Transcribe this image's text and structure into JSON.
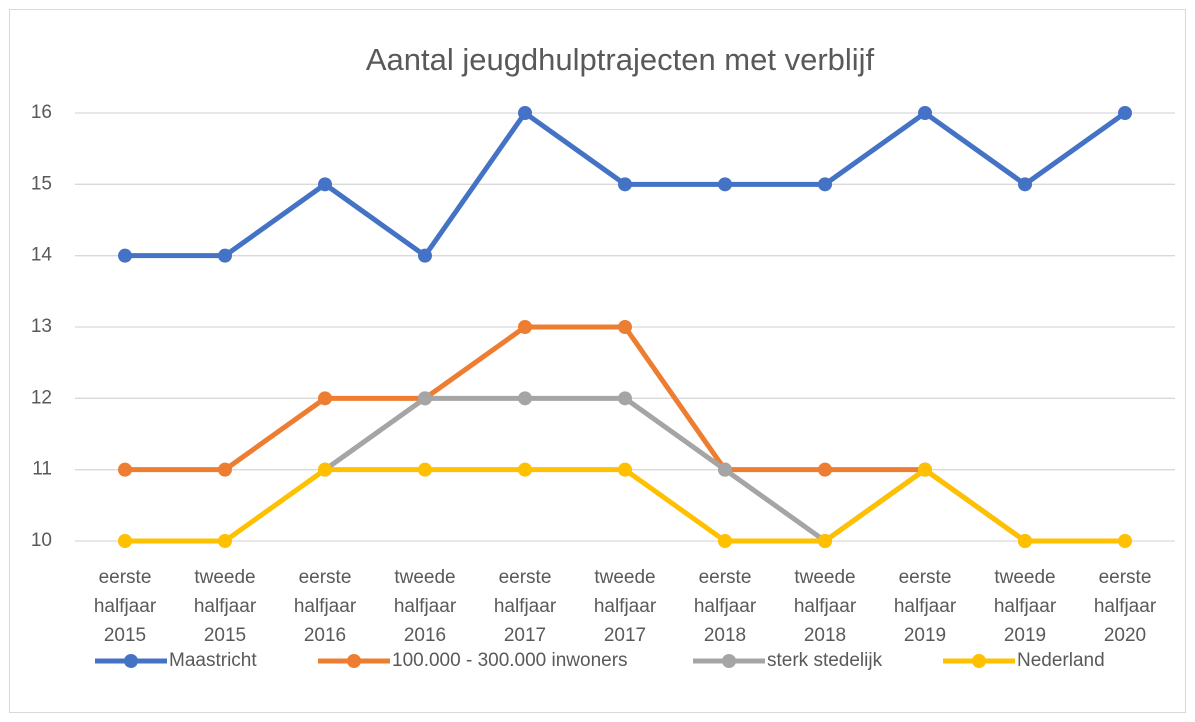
{
  "chart_data": {
    "type": "line",
    "title": "Aantal jeugdhulptrajecten met verblijf",
    "categories": [
      "eerste halfjaar 2015",
      "tweede halfjaar 2015",
      "eerste halfjaar 2016",
      "tweede halfjaar 2016",
      "eerste halfjaar 2017",
      "tweede halfjaar 2017",
      "eerste halfjaar 2018",
      "tweede halfjaar 2018",
      "eerste halfjaar 2019",
      "tweede halfjaar 2019",
      "eerste halfjaar 2020"
    ],
    "series": [
      {
        "name": "Maastricht",
        "color": "#4472c4",
        "values": [
          14,
          14,
          15,
          14,
          16,
          15,
          15,
          15,
          16,
          15,
          16
        ]
      },
      {
        "name": "100.000 - 300.000 inwoners",
        "color": "#ed7d31",
        "values": [
          11,
          11,
          12,
          12,
          13,
          13,
          11,
          11,
          11,
          null,
          null
        ]
      },
      {
        "name": "sterk stedelijk",
        "color": "#a5a5a5",
        "values": [
          null,
          null,
          11,
          12,
          12,
          12,
          11,
          10,
          11,
          10,
          null
        ]
      },
      {
        "name": "Nederland",
        "color": "#ffc000",
        "values": [
          10,
          10,
          11,
          11,
          11,
          11,
          10,
          10,
          11,
          10,
          10
        ]
      }
    ],
    "ylim": [
      10,
      16
    ],
    "yticks": [
      10,
      11,
      12,
      13,
      14,
      15,
      16
    ],
    "grid": true,
    "legend": "bottom"
  }
}
